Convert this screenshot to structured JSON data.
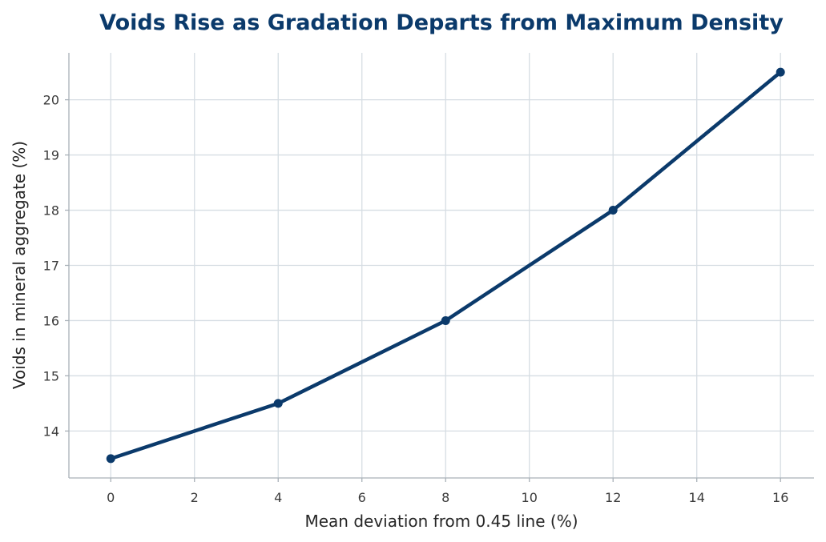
{
  "chart_data": {
    "type": "line",
    "title": "Voids Rise as Gradation Departs from Maximum Density",
    "xlabel": "Mean deviation from 0.45 line (%)",
    "ylabel": "Voids in mineral aggregate (%)",
    "xlim": [
      -1,
      16.8
    ],
    "ylim": [
      13.15,
      20.85
    ],
    "xticks": [
      0,
      2,
      4,
      6,
      8,
      10,
      12,
      14,
      16
    ],
    "yticks": [
      14,
      15,
      16,
      17,
      18,
      19,
      20
    ],
    "grid": true,
    "series": [
      {
        "x": [
          0,
          4,
          8,
          12,
          16
        ],
        "values": [
          13.5,
          14.5,
          16.0,
          18.0,
          20.5
        ]
      }
    ]
  },
  "colors": {
    "series": "#0b3a6b",
    "title": "#0b3a6b",
    "grid": "#d6dde3",
    "spine": "#a9b1b8"
  }
}
